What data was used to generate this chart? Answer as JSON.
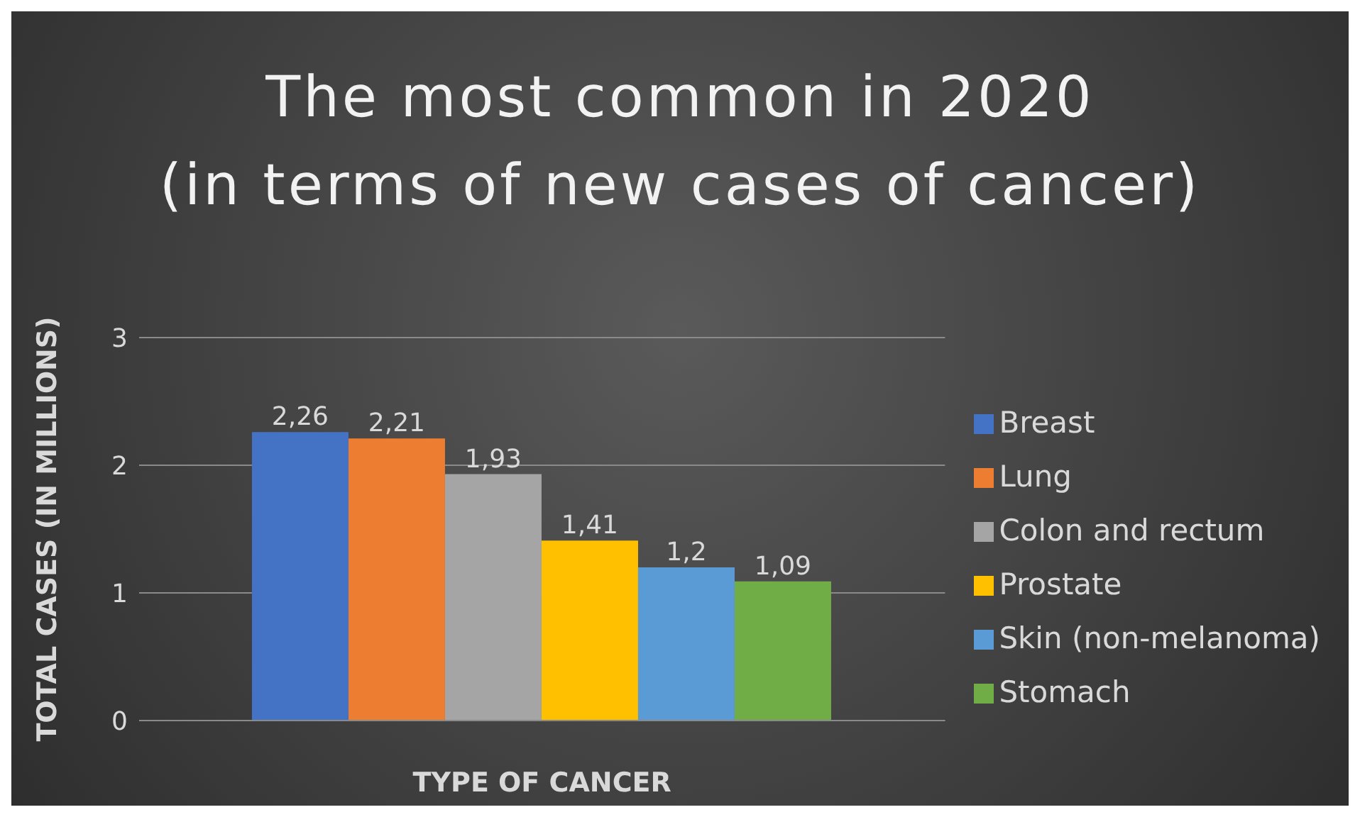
{
  "chart_data": {
    "type": "bar",
    "title": "The most common in 2020",
    "subtitle": "(in terms of new cases of cancer)",
    "xlabel": "TYPE OF CANCER",
    "ylabel": "TOTAL CASES (IN MILLIONS)",
    "categories": [
      null
    ],
    "series": [
      {
        "name": "Breast",
        "color": "#4472c4",
        "values": [
          2.26
        ],
        "value_labels": [
          "2,26"
        ]
      },
      {
        "name": "Lung",
        "color": "#ed7d31",
        "values": [
          2.21
        ],
        "value_labels": [
          "2,21"
        ]
      },
      {
        "name": "Colon and rectum",
        "color": "#a5a5a5",
        "values": [
          1.93
        ],
        "value_labels": [
          "1,93"
        ]
      },
      {
        "name": "Prostate",
        "color": "#ffc000",
        "values": [
          1.41
        ],
        "value_labels": [
          "1,41"
        ]
      },
      {
        "name": "Skin (non-melanoma)",
        "color": "#5b9bd5",
        "values": [
          1.2
        ],
        "value_labels": [
          "1,2"
        ]
      },
      {
        "name": "Stomach",
        "color": "#70ad47",
        "values": [
          1.09
        ],
        "value_labels": [
          "1,09"
        ]
      }
    ],
    "ylim": [
      0,
      3
    ],
    "yticks": [
      0,
      1,
      2,
      3
    ],
    "grid": "y",
    "legend": "right"
  }
}
